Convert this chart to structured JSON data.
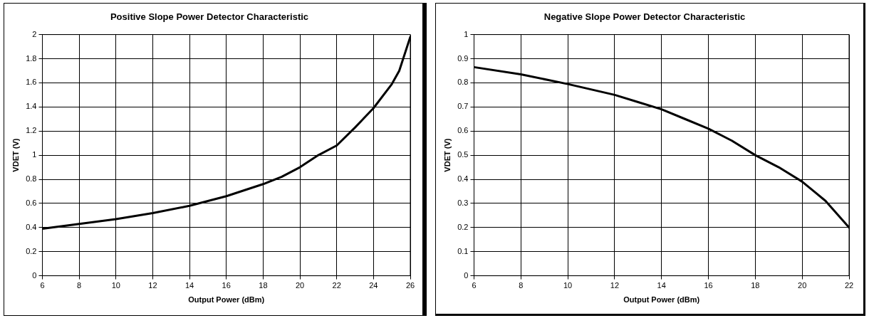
{
  "chart_data": [
    {
      "type": "line",
      "title": "Positive Slope Power Detector Characteristic",
      "xlabel": "Output Power (dBm)",
      "ylabel": "VDET (V)",
      "xlim": [
        6,
        26
      ],
      "xticks": [
        6,
        8,
        10,
        12,
        14,
        16,
        18,
        20,
        22,
        24,
        26
      ],
      "ylim": [
        0,
        2
      ],
      "yticks": [
        0,
        0.2,
        0.4,
        0.6,
        0.8,
        1,
        1.2,
        1.4,
        1.6,
        1.8,
        2
      ],
      "grid": true,
      "legend": false,
      "marker": "none",
      "line_style": "solid",
      "series": [
        {
          "color": "#000000",
          "x": [
            6,
            8,
            10,
            12,
            14,
            16,
            18,
            19,
            20,
            21,
            22,
            23,
            24,
            25,
            25.4,
            26
          ],
          "values": [
            0.39,
            0.43,
            0.47,
            0.52,
            0.58,
            0.66,
            0.76,
            0.82,
            0.9,
            1.0,
            1.08,
            1.23,
            1.39,
            1.59,
            1.7,
            1.98
          ]
        }
      ]
    },
    {
      "type": "line",
      "title": "Negative Slope Power Detector Characteristic",
      "xlabel": "Output Power (dBm)",
      "ylabel": "VDET (V)",
      "xlim": [
        6,
        22
      ],
      "xticks": [
        6,
        8,
        10,
        12,
        14,
        16,
        18,
        20,
        22
      ],
      "ylim": [
        0,
        1
      ],
      "yticks": [
        0,
        0.1,
        0.2,
        0.3,
        0.4,
        0.5,
        0.6,
        0.7,
        0.8,
        0.9,
        1
      ],
      "grid": true,
      "legend": false,
      "marker": "none",
      "line_style": "solid",
      "series": [
        {
          "color": "#000000",
          "x": [
            6,
            8,
            10,
            12,
            13,
            14,
            15,
            16,
            17,
            18,
            19,
            20,
            20.5,
            21,
            22
          ],
          "values": [
            0.865,
            0.835,
            0.795,
            0.75,
            0.72,
            0.69,
            0.65,
            0.61,
            0.56,
            0.5,
            0.45,
            0.39,
            0.35,
            0.31,
            0.2
          ]
        }
      ]
    }
  ]
}
